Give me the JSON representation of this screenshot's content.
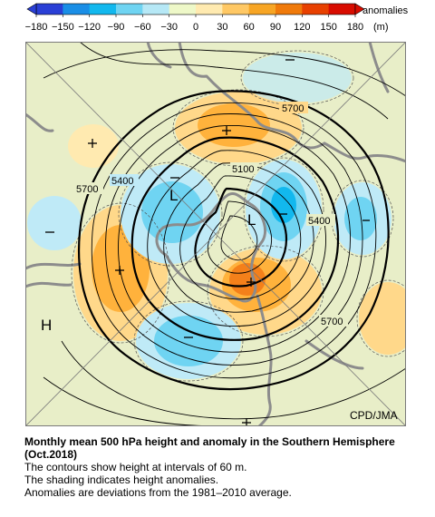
{
  "colorbar": {
    "ticks": [
      "−180",
      "−150",
      "−120",
      "−90",
      "−60",
      "−30",
      "0",
      "30",
      "60",
      "90",
      "120",
      "150",
      "180"
    ],
    "unit_label": "anomalies",
    "unit": "(m)",
    "colors": [
      "#2a3fd6",
      "#1a8ee6",
      "#12b8ee",
      "#6fd4f2",
      "#b6e8f6",
      "#eef8c8",
      "#ffeab0",
      "#ffc864",
      "#f7a524",
      "#f07a0a",
      "#e84000",
      "#d80c00"
    ]
  },
  "map": {
    "contour_labels": [
      "5700",
      "5400",
      "5100",
      "5400",
      "5700",
      "5700",
      "5400",
      "5700"
    ],
    "low_labels": [
      "L",
      "L"
    ],
    "high_label": "H",
    "credit": "CPD/JMA",
    "land_color": "#e8eec8",
    "frame_color": "#7a7a7a"
  },
  "caption": {
    "title": "Monthly mean 500 hPa height and anomaly in the Southern Hemisphere (Oct.2018)",
    "line1": "The contours show height at intervals of 60 m.",
    "line2": "The shading indicates height anomalies.",
    "line3": "Anomalies are deviations from the 1981–2010 average."
  }
}
